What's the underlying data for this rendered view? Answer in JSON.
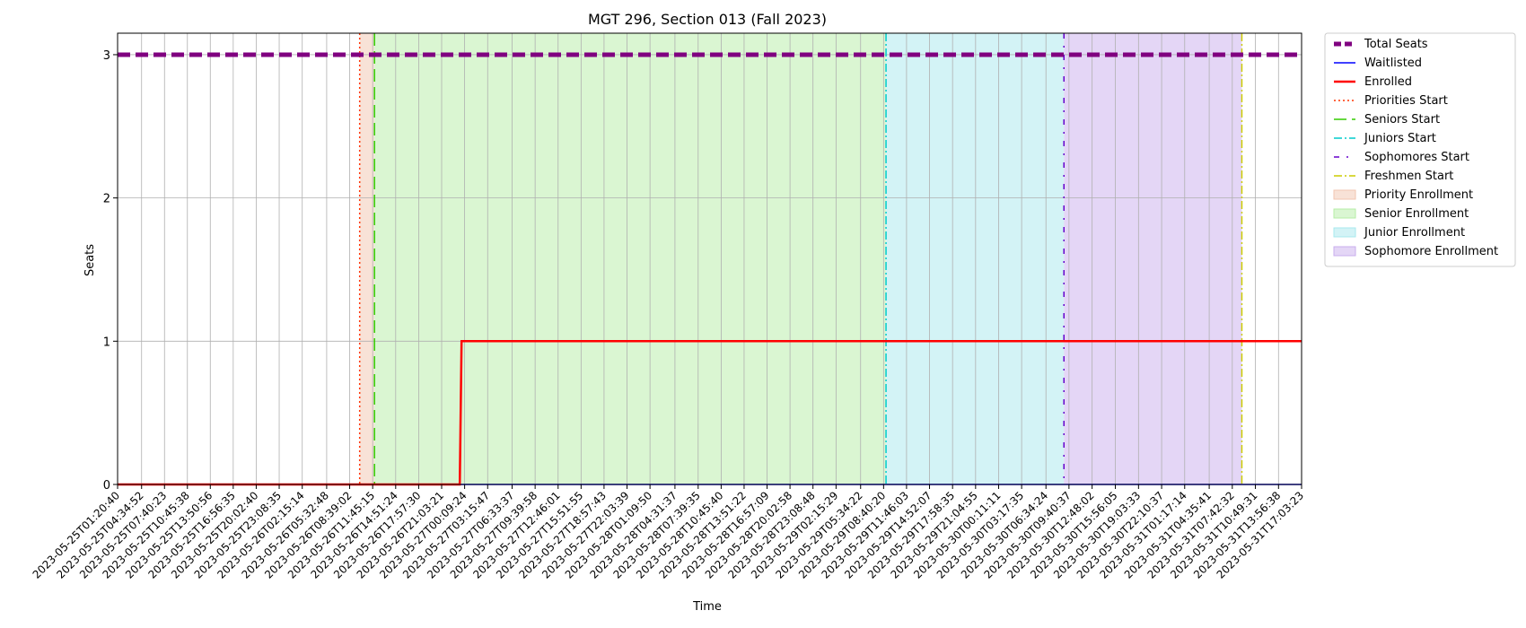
{
  "chart_data": {
    "type": "line",
    "title": "MGT 296, Section 013 (Fall 2023)",
    "xlabel": "Time",
    "ylabel": "Seats",
    "ylim": [
      0,
      3.15
    ],
    "yticks": [
      "0",
      "1",
      "2",
      "3"
    ],
    "grid": true,
    "legend_position": "outside-right",
    "x_ticks": [
      "2023-05-25T01:20:40",
      "2023-05-25T04:34:52",
      "2023-05-25T07:40:23",
      "2023-05-25T10:45:38",
      "2023-05-25T13:50:56",
      "2023-05-25T16:56:35",
      "2023-05-25T20:02:40",
      "2023-05-25T23:08:35",
      "2023-05-26T02:15:14",
      "2023-05-26T05:32:48",
      "2023-05-26T08:39:02",
      "2023-05-26T11:45:15",
      "2023-05-26T14:51:24",
      "2023-05-26T17:57:30",
      "2023-05-26T21:03:21",
      "2023-05-27T00:09:24",
      "2023-05-27T03:15:47",
      "2023-05-27T06:33:37",
      "2023-05-27T09:39:58",
      "2023-05-27T12:46:01",
      "2023-05-27T15:51:55",
      "2023-05-27T18:57:43",
      "2023-05-27T22:03:39",
      "2023-05-28T01:09:50",
      "2023-05-28T04:31:37",
      "2023-05-28T07:39:35",
      "2023-05-28T10:45:40",
      "2023-05-28T13:51:22",
      "2023-05-28T16:57:09",
      "2023-05-28T20:02:58",
      "2023-05-28T23:08:48",
      "2023-05-29T02:15:29",
      "2023-05-29T05:34:22",
      "2023-05-29T08:40:20",
      "2023-05-29T11:46:03",
      "2023-05-29T14:52:07",
      "2023-05-29T17:58:35",
      "2023-05-29T21:04:55",
      "2023-05-30T00:11:11",
      "2023-05-30T03:17:35",
      "2023-05-30T06:34:24",
      "2023-05-30T09:40:37",
      "2023-05-30T12:48:02",
      "2023-05-30T15:56:05",
      "2023-05-30T19:03:33",
      "2023-05-30T22:10:37",
      "2023-05-31T01:17:14",
      "2023-05-31T04:35:41",
      "2023-05-31T07:42:32",
      "2023-05-31T10:49:31",
      "2023-05-31T13:56:38",
      "2023-05-31T17:03:23"
    ],
    "series": [
      {
        "name": "Total Seats",
        "style": "dashed",
        "color": "#800080",
        "points": [
          [
            "2023-05-25T01:20:40",
            3
          ],
          [
            "2023-05-31T17:03:23",
            3
          ]
        ]
      },
      {
        "name": "Waitlisted",
        "style": "solid",
        "color": "#0000ff",
        "points": [
          [
            "2023-05-25T01:20:40",
            0
          ],
          [
            "2023-05-31T17:03:23",
            0
          ]
        ]
      },
      {
        "name": "Enrolled",
        "style": "solid",
        "color": "#ff0000",
        "points": [
          [
            "2023-05-25T01:20:40",
            0
          ],
          [
            "2023-05-26T23:30:00",
            0
          ],
          [
            "2023-05-26T23:45:00",
            1
          ],
          [
            "2023-05-31T17:03:23",
            1
          ]
        ]
      }
    ],
    "vlines": [
      {
        "name": "Priorities Start",
        "x": "2023-05-26T10:00:00",
        "style": "dotted",
        "color": "#ff3300"
      },
      {
        "name": "Seniors Start",
        "x": "2023-05-26T12:00:00",
        "style": "dashed",
        "color": "#33cc00"
      },
      {
        "name": "Juniors Start",
        "x": "2023-05-29T09:00:00",
        "style": "dashdot",
        "color": "#00cccc"
      },
      {
        "name": "Sophomores Start",
        "x": "2023-05-30T09:00:00",
        "style": "sparse-dashdot",
        "color": "#6600cc"
      },
      {
        "name": "Freshmen Start",
        "x": "2023-05-31T09:00:00",
        "style": "dashdot",
        "color": "#cccc00"
      }
    ],
    "bands": [
      {
        "name": "Priority Enrollment",
        "from": "2023-05-26T10:00:00",
        "to": "2023-05-26T12:00:00",
        "color": "#f2c6b0"
      },
      {
        "name": "Senior Enrollment",
        "from": "2023-05-26T12:00:00",
        "to": "2023-05-29T09:00:00",
        "color": "#b6eda6"
      },
      {
        "name": "Junior Enrollment",
        "from": "2023-05-29T09:00:00",
        "to": "2023-05-30T09:00:00",
        "color": "#a7e8ee"
      },
      {
        "name": "Sophomore Enrollment",
        "from": "2023-05-30T09:00:00",
        "to": "2023-05-31T09:00:00",
        "color": "#c9aeee"
      }
    ]
  }
}
